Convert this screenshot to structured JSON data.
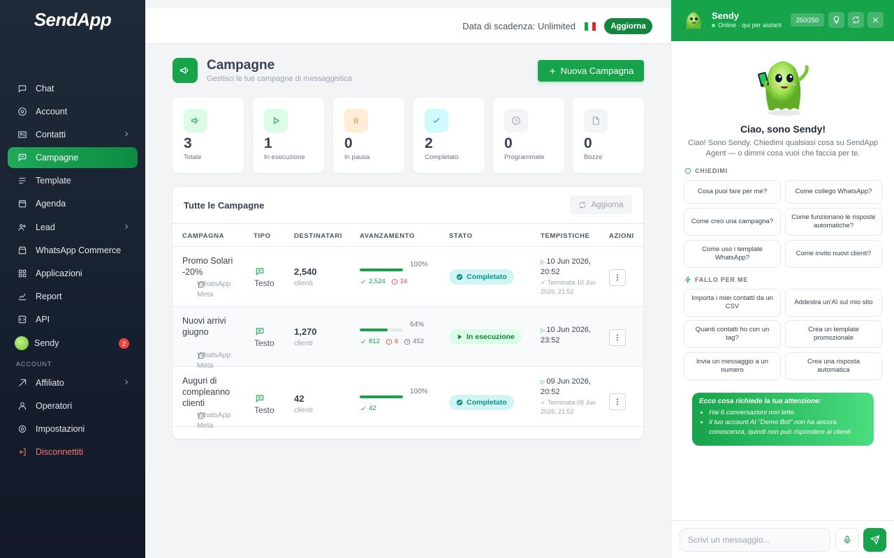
{
  "app": {
    "logo_text": "SendApp"
  },
  "sidebar": {
    "items": [
      {
        "label": "Chat",
        "icon": "chat-icon"
      },
      {
        "label": "Account",
        "icon": "account-icon"
      },
      {
        "label": "Contatti",
        "icon": "contacts-icon",
        "has_chevron": true
      },
      {
        "label": "Campagne",
        "icon": "campaigns-icon",
        "active": true
      },
      {
        "label": "Template",
        "icon": "template-icon"
      },
      {
        "label": "Agenda",
        "icon": "calendar-icon"
      },
      {
        "label": "Lead",
        "icon": "lead-icon",
        "has_chevron": true
      },
      {
        "label": "WhatsApp Commerce",
        "icon": "shop-icon"
      },
      {
        "label": "Applicazioni",
        "icon": "apps-icon"
      },
      {
        "label": "Report",
        "icon": "report-icon"
      },
      {
        "label": "API",
        "icon": "api-icon"
      },
      {
        "label": "Sendy",
        "icon": "sendy-avatar",
        "badge": "2"
      }
    ],
    "account_section_label": "ACCOUNT",
    "account_items": [
      {
        "label": "Affiliato",
        "icon": "affiliate-icon",
        "has_chevron": true
      },
      {
        "label": "Operatori",
        "icon": "operators-icon"
      },
      {
        "label": "Impostazioni",
        "icon": "settings-icon"
      },
      {
        "label": "Disconnettiti",
        "icon": "logout-icon",
        "danger": true
      }
    ]
  },
  "topbar": {
    "expiry": "Data di scadenza: Unlimited",
    "upgrade_label": "Aggiorna"
  },
  "page": {
    "title": "Campagne",
    "subtitle": "Gestisci le tue campagne di messaggistica",
    "new_button": "Nuova Campagna"
  },
  "stats": [
    {
      "value": "3",
      "label": "Totale",
      "icon": "megaphone-icon",
      "bg": "#dcfce7",
      "fg": "#16a34a"
    },
    {
      "value": "1",
      "label": "In esecuzione",
      "icon": "play-icon",
      "bg": "#dcfce7",
      "fg": "#16a34a"
    },
    {
      "value": "0",
      "label": "In pausa",
      "icon": "pause-icon",
      "bg": "#ffedd5",
      "fg": "#f97316"
    },
    {
      "value": "2",
      "label": "Completato",
      "icon": "check-icon",
      "bg": "#cffafe",
      "fg": "#0891b2"
    },
    {
      "value": "0",
      "label": "Programmate",
      "icon": "clock-icon",
      "bg": "#f3f4f6",
      "fg": "#9ca3af"
    },
    {
      "value": "0",
      "label": "Bozze",
      "icon": "file-icon",
      "bg": "#f3f4f6",
      "fg": "#9ca3af"
    }
  ],
  "table": {
    "title": "Tutte le Campagne",
    "refresh_label": "Aggiorna",
    "headers": [
      "CAMPAGNA",
      "TIPO",
      "DESTINATARI",
      "AVANZAMENTO",
      "STATO",
      "TEMPISTICHE",
      "AZIONI"
    ],
    "rows": [
      {
        "name": "Promo Solari -20%",
        "platform": "WhatsApp Meta",
        "type": "Testo",
        "recipients": "2,540",
        "recipients_unit": "clienti",
        "progress_pct": 100,
        "progress_label": "100%",
        "sent": "2,524",
        "failed": "16",
        "pending": "",
        "status": "Completato",
        "status_kind": "done",
        "start": "10 Jun 2026, 20:52",
        "end": "Terminata 10 Jun 2026, 21:52"
      },
      {
        "name": "Nuovi arrivi giugno",
        "platform": "WhatsApp Meta",
        "type": "Testo",
        "recipients": "1,270",
        "recipients_unit": "clienti",
        "progress_pct": 64,
        "progress_label": "64%",
        "sent": "812",
        "failed": "6",
        "pending": "452",
        "status": "In esecuzione",
        "status_kind": "run",
        "start": "10 Jun 2026, 23:52",
        "end": ""
      },
      {
        "name": "Auguri di compleanno clienti",
        "platform": "WhatsApp Meta",
        "type": "Testo",
        "recipients": "42",
        "recipients_unit": "clienti",
        "progress_pct": 100,
        "progress_label": "100%",
        "sent": "42",
        "failed": "",
        "pending": "",
        "status": "Completato",
        "status_kind": "done",
        "start": "09 Jun 2026, 20:52",
        "end": "Terminata 09 Jun 2026, 21:52"
      }
    ]
  },
  "sendy": {
    "name": "Sendy",
    "status": "Online · qui per aiutarti",
    "quota": "250/250",
    "greeting": "Ciao, sono Sendy!",
    "intro": "Ciao! Sono Sendy. Chiedimi qualsiasi cosa su SendApp Agent — o dimmi cosa vuoi che faccia per te.",
    "ask_label": "CHIEDIMI",
    "ask_chips": [
      "Cosa puoi fare per me?",
      "Come collego WhatsApp?",
      "Come creo una campagna?",
      "Come funzionano le risposte automatiche?",
      "Come uso i template WhatsApp?",
      "Come invito nuovi clienti?"
    ],
    "do_label": "FALLO PER ME",
    "do_chips": [
      "Importa i miei contatti da un CSV",
      "Addestra un'AI sul mio sito",
      "Quanti contatti ho con un tag?",
      "Crea un template promozionale",
      "Invia un messaggio a un numero",
      "Crea una risposta automatica"
    ],
    "attention_title": "Ecco cosa richiede la tua attenzione:",
    "attention_items": [
      "Hai 6 conversazioni non lette.",
      "Il tuo account AI \"Demo Bot\" non ha ancora conoscenza, quindi non può rispondere ai clienti."
    ],
    "input_placeholder": "Scrivi un messaggio..."
  }
}
